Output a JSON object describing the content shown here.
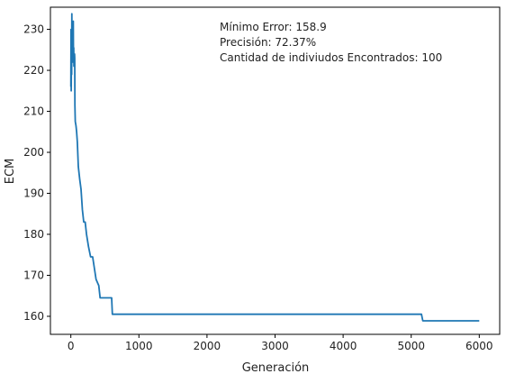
{
  "chart_data": {
    "type": "line",
    "title": "",
    "xlabel": "Generación",
    "ylabel": "ECM",
    "xlim": [
      -300,
      6300
    ],
    "ylim": [
      155.6,
      235.4
    ],
    "xticks": [
      0,
      1000,
      2000,
      3000,
      4000,
      5000,
      6000
    ],
    "yticks": [
      160,
      170,
      180,
      190,
      200,
      210,
      220,
      230
    ],
    "grid": false,
    "legend": "none",
    "line_color": "#1f77b4",
    "annotations": [
      "Mínimo Error: 158.9",
      "Precisión: 72.37%",
      "Cantidad de indiviudos Encontrados: 100"
    ],
    "series": [
      {
        "x": [
          0,
          3,
          6,
          9,
          12,
          15,
          18,
          21,
          24,
          27,
          30,
          33,
          36,
          39,
          42,
          45,
          48,
          51,
          54,
          57,
          60,
          65,
          75,
          85,
          95,
          110,
          130,
          150,
          170,
          190,
          210,
          230,
          260,
          290,
          300,
          320,
          370,
          410,
          430,
          600,
          610,
          5150,
          5170,
          6000
        ],
        "y": [
          216,
          230,
          215,
          228,
          219,
          233.8,
          224,
          231,
          222,
          225,
          229,
          226,
          232,
          223,
          225.5,
          221,
          224,
          222,
          224,
          223,
          211.5,
          207.5,
          206.5,
          205,
          202.5,
          196.5,
          193.5,
          191,
          186,
          183,
          183,
          180,
          177,
          174.5,
          174.5,
          174.5,
          169,
          167.5,
          164.5,
          164.5,
          160.5,
          160.5,
          158.9,
          158.9
        ]
      }
    ]
  }
}
